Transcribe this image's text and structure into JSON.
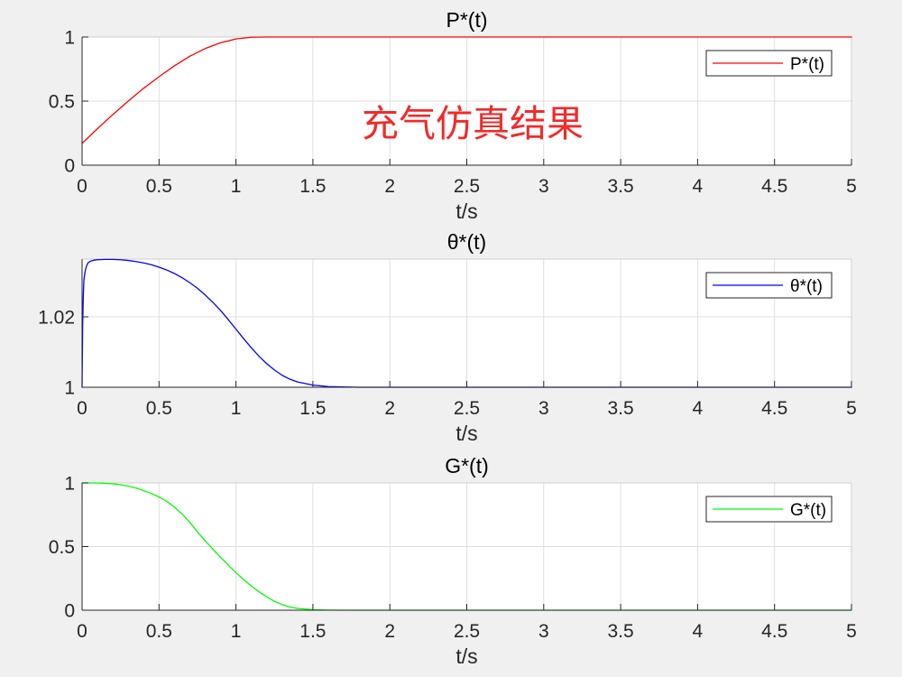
{
  "figure": {
    "background": "#f0f0f0",
    "axes_background": "#ffffff"
  },
  "chart_data": [
    {
      "type": "line",
      "title": "P*(t)",
      "xlabel": "t/s",
      "xlim": [
        0,
        5
      ],
      "ylim": [
        0,
        1
      ],
      "xticks": [
        0,
        0.5,
        1,
        1.5,
        2,
        2.5,
        3,
        3.5,
        4,
        4.5,
        5
      ],
      "xtick_labels": [
        "0",
        "0.5",
        "1",
        "1.5",
        "2",
        "2.5",
        "3",
        "3.5",
        "4",
        "4.5",
        "5"
      ],
      "yticks": [
        0,
        0.5,
        1
      ],
      "ytick_labels": [
        "0",
        "0.5",
        "1"
      ],
      "grid": true,
      "legend": {
        "position": "top-right"
      },
      "series": [
        {
          "name": "P*(t)",
          "color": "#ff0000",
          "x": [
            0,
            0.1,
            0.2,
            0.3,
            0.4,
            0.5,
            0.6,
            0.7,
            0.8,
            0.9,
            1.0,
            1.1,
            1.2,
            1.5,
            2,
            2.5,
            3,
            3.5,
            4,
            4.5,
            5
          ],
          "y": [
            0.17,
            0.285,
            0.395,
            0.5,
            0.6,
            0.69,
            0.775,
            0.85,
            0.91,
            0.955,
            0.985,
            0.998,
            1.0,
            1.0,
            1.0,
            1.0,
            1.0,
            1.0,
            1.0,
            1.0,
            1.0
          ]
        }
      ],
      "annotations": [
        {
          "text": "充气仿真结果",
          "color": "#f22a2a"
        }
      ]
    },
    {
      "type": "line",
      "title": "θ*(t)",
      "xlabel": "t/s",
      "xlim": [
        0,
        5
      ],
      "ylim": [
        1,
        1.0364
      ],
      "xticks": [
        0,
        0.5,
        1,
        1.5,
        2,
        2.5,
        3,
        3.5,
        4,
        4.5,
        5
      ],
      "xtick_labels": [
        "0",
        "0.5",
        "1",
        "1.5",
        "2",
        "2.5",
        "3",
        "3.5",
        "4",
        "4.5",
        "5"
      ],
      "yticks": [
        1,
        1.02
      ],
      "ytick_labels": [
        "1",
        "1.02"
      ],
      "grid": true,
      "legend": {
        "position": "top-right"
      },
      "series": [
        {
          "name": "θ*(t)",
          "color": "#0000ff",
          "x": [
            0,
            0.004,
            0.008,
            0.012,
            0.02,
            0.03,
            0.04,
            0.06,
            0.08,
            0.1,
            0.15,
            0.2,
            0.25,
            0.3,
            0.35,
            0.4,
            0.45,
            0.5,
            0.55,
            0.6,
            0.65,
            0.7,
            0.75,
            0.8,
            0.85,
            0.9,
            0.95,
            1.0,
            1.05,
            1.1,
            1.15,
            1.2,
            1.25,
            1.3,
            1.35,
            1.4,
            1.5,
            1.6,
            1.7,
            1.8,
            2.0,
            3,
            4,
            5
          ],
          "y": [
            1.0,
            1.018,
            1.026,
            1.0305,
            1.033,
            1.0346,
            1.0354,
            1.0359,
            1.0361,
            1.0362,
            1.0363,
            1.0363,
            1.0362,
            1.036,
            1.0357,
            1.0353,
            1.0348,
            1.0341,
            1.0333,
            1.0323,
            1.0311,
            1.0297,
            1.0281,
            1.0262,
            1.0241,
            1.0218,
            1.0192,
            1.0165,
            1.0138,
            1.0112,
            1.0088,
            1.0067,
            1.0049,
            1.0034,
            1.0023,
            1.0015,
            1.0006,
            1.0002,
            1.0001,
            1.0,
            1.0,
            1.0,
            1.0,
            1.0
          ]
        }
      ]
    },
    {
      "type": "line",
      "title": "G*(t)",
      "xlabel": "t/s",
      "xlim": [
        0,
        5
      ],
      "ylim": [
        0,
        1
      ],
      "xticks": [
        0,
        0.5,
        1,
        1.5,
        2,
        2.5,
        3,
        3.5,
        4,
        4.5,
        5
      ],
      "xtick_labels": [
        "0",
        "0.5",
        "1",
        "1.5",
        "2",
        "2.5",
        "3",
        "3.5",
        "4",
        "4.5",
        "5"
      ],
      "yticks": [
        0,
        0.5,
        1
      ],
      "ytick_labels": [
        "0",
        "0.5",
        "1"
      ],
      "grid": true,
      "legend": {
        "position": "top-right"
      },
      "series": [
        {
          "name": "G*(t)",
          "color": "#00ff00",
          "x": [
            0,
            0.05,
            0.1,
            0.15,
            0.2,
            0.25,
            0.3,
            0.35,
            0.4,
            0.45,
            0.5,
            0.55,
            0.6,
            0.65,
            0.7,
            0.75,
            0.8,
            0.85,
            0.9,
            0.95,
            1.0,
            1.05,
            1.1,
            1.15,
            1.2,
            1.25,
            1.3,
            1.35,
            1.4,
            1.5,
            1.6,
            1.7,
            1.8,
            2,
            3,
            4,
            5
          ],
          "y": [
            1.0,
            1.0,
            0.999,
            0.997,
            0.993,
            0.986,
            0.975,
            0.96,
            0.94,
            0.917,
            0.89,
            0.855,
            0.81,
            0.755,
            0.69,
            0.615,
            0.545,
            0.48,
            0.415,
            0.355,
            0.295,
            0.24,
            0.19,
            0.145,
            0.105,
            0.07,
            0.044,
            0.026,
            0.014,
            0.004,
            0.001,
            0.0,
            0.0,
            0.0,
            0.0,
            0.0,
            0.0
          ]
        }
      ]
    }
  ]
}
